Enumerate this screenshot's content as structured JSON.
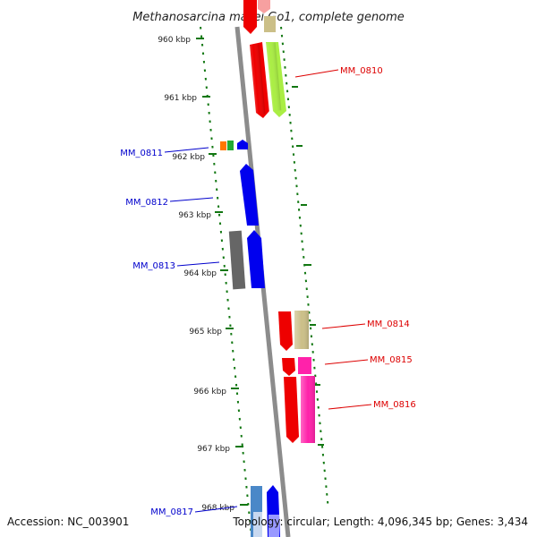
{
  "title": "Methanosarcina mazei Go1, complete genome",
  "footer": {
    "accession": "Accession: NC_003901",
    "summary": "Topology: circular; Length: 4,096,345 bp; Genes: 3,434"
  },
  "ticks": [
    "960 kbp",
    "961 kbp",
    "962 kbp",
    "963 kbp",
    "964 kbp",
    "965 kbp",
    "966 kbp",
    "967 kbp",
    "968 kbp"
  ],
  "gene_labels": {
    "MM_0810": "MM_0810",
    "MM_0811": "MM_0811",
    "MM_0812": "MM_0812",
    "MM_0813": "MM_0813",
    "MM_0814": "MM_0814",
    "MM_0815": "MM_0815",
    "MM_0816": "MM_0816",
    "MM_0817": "MM_0817"
  },
  "colors": {
    "red": "#ee0000",
    "pink_faded": "#f7a0a0",
    "lime": "#aaee44",
    "khaki": "#cbbf88",
    "orange": "#ff7700",
    "green": "#22aa33",
    "blue": "#0000ee",
    "gray": "#666666",
    "magenta": "#ff22aa",
    "steelblue": "#4a88c8",
    "periwinkle": "#8888ff",
    "backbone": "#8c8c8c",
    "tick": "#117711"
  }
}
